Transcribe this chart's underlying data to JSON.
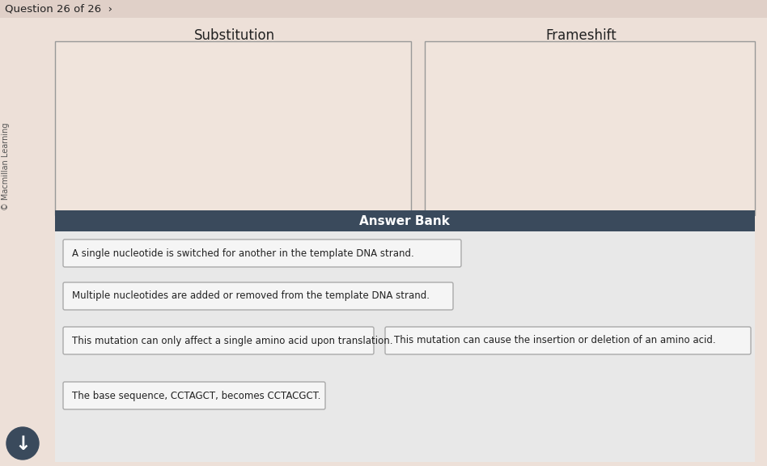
{
  "title_text": "Question 26 of 26  ›",
  "col1_header": "Substitution",
  "col2_header": "Frameshift",
  "answer_bank_label": "Answer Bank",
  "answer_items": [
    {
      "text": "A single nucleotide is switched for another in the template DNA strand."
    },
    {
      "text": "Multiple nucleotides are added or removed from the template DNA strand."
    },
    {
      "text": "This mutation can only affect a single amino acid upon translation."
    },
    {
      "text": "This mutation can cause the insertion or deletion of an amino acid."
    },
    {
      "text": "The base sequence, CCTAGCT, becomes CCTACGCT."
    }
  ],
  "sidebar_text": "© Macmillan Learning",
  "page_bg": "#ede0d8",
  "drop_zone_bg": "#f0e4dc",
  "drop_zone_border": "#999999",
  "answer_bank_header_bg": "#3a4a5c",
  "answer_bank_content_bg": "#e8e8e8",
  "answer_item_bg": "#f5f5f5",
  "answer_item_border": "#aaaaaa",
  "header_text_color": "#ffffff",
  "col_header_color": "#222222",
  "title_color": "#222222",
  "sidebar_color": "#555555",
  "down_arrow_bg": "#3a4a5c",
  "title_bar_bg": "#e0d0c8"
}
